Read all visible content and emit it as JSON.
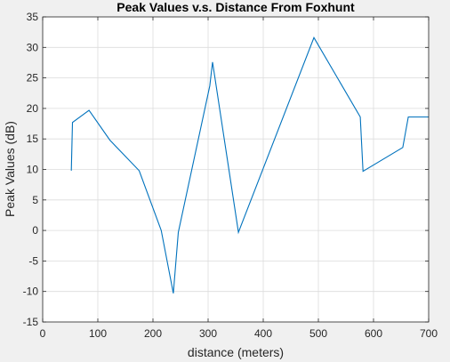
{
  "chart_data": {
    "type": "line",
    "title": "Peak Values v.s. Distance From Foxhunt",
    "xlabel": "distance (meters)",
    "ylabel": "Peak Values (dB)",
    "xlim": [
      0,
      700
    ],
    "ylim": [
      -15,
      35
    ],
    "x_ticks": [
      0,
      100,
      200,
      300,
      400,
      500,
      600,
      700
    ],
    "y_ticks": [
      -15,
      -10,
      -5,
      0,
      5,
      10,
      15,
      20,
      25,
      30,
      35
    ],
    "grid": true,
    "line_color": "#0072BD",
    "series": [
      {
        "x": [
          52,
          54,
          84,
          122,
          175,
          215,
          237,
          246,
          303,
          308,
          355,
          492,
          576,
          581,
          653,
          663,
          700
        ],
        "y": [
          9.8,
          17.7,
          19.7,
          14.8,
          9.8,
          0,
          -10.3,
          -0.3,
          23.7,
          27.6,
          -0.3,
          31.6,
          18.6,
          9.7,
          13.6,
          18.6,
          18.6
        ]
      }
    ]
  }
}
